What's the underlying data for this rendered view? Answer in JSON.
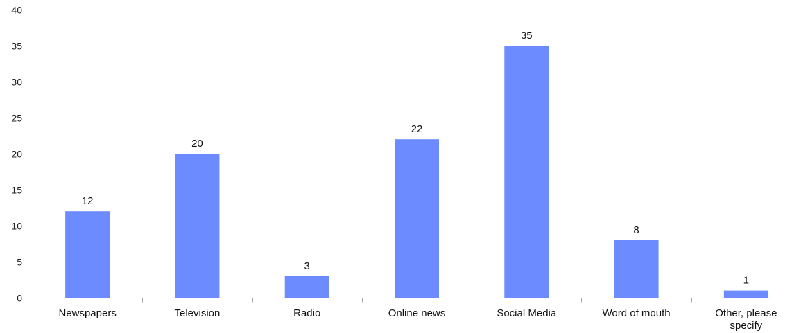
{
  "chart_data": {
    "type": "bar",
    "title": "",
    "xlabel": "",
    "ylabel": "",
    "categories": [
      "Newspapers",
      "Television",
      "Radio",
      "Online news",
      "Social Media",
      "Word of mouth",
      "Other, please specify"
    ],
    "category_lines": [
      [
        "Newspapers"
      ],
      [
        "Television"
      ],
      [
        "Radio"
      ],
      [
        "Online news"
      ],
      [
        "Social Media"
      ],
      [
        "Word of mouth"
      ],
      [
        "Other, please",
        "specify"
      ]
    ],
    "values": [
      12,
      20,
      3,
      22,
      35,
      8,
      1
    ],
    "data_labels": [
      "12",
      "20",
      "3",
      "22",
      "35",
      "8",
      "1"
    ],
    "ylim": [
      0,
      40
    ],
    "yticks": [
      0,
      5,
      10,
      15,
      20,
      25,
      30,
      35,
      40
    ],
    "grid": true,
    "legend": "none",
    "bar_color": "#6b8bff",
    "grid_color": "#a6a6a6",
    "axis_color": "#a6a6a6"
  }
}
